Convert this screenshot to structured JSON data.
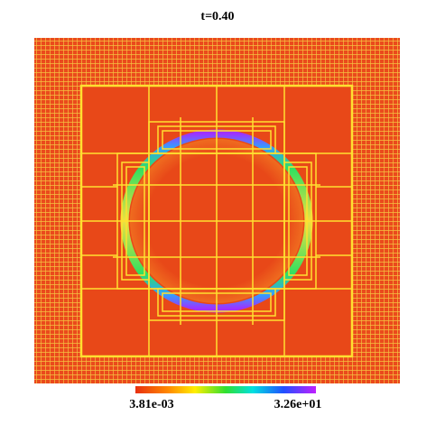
{
  "title": "t=0.40",
  "colorbar": {
    "min_label": "3.81e-03",
    "max_label": "3.26e+01"
  }
}
